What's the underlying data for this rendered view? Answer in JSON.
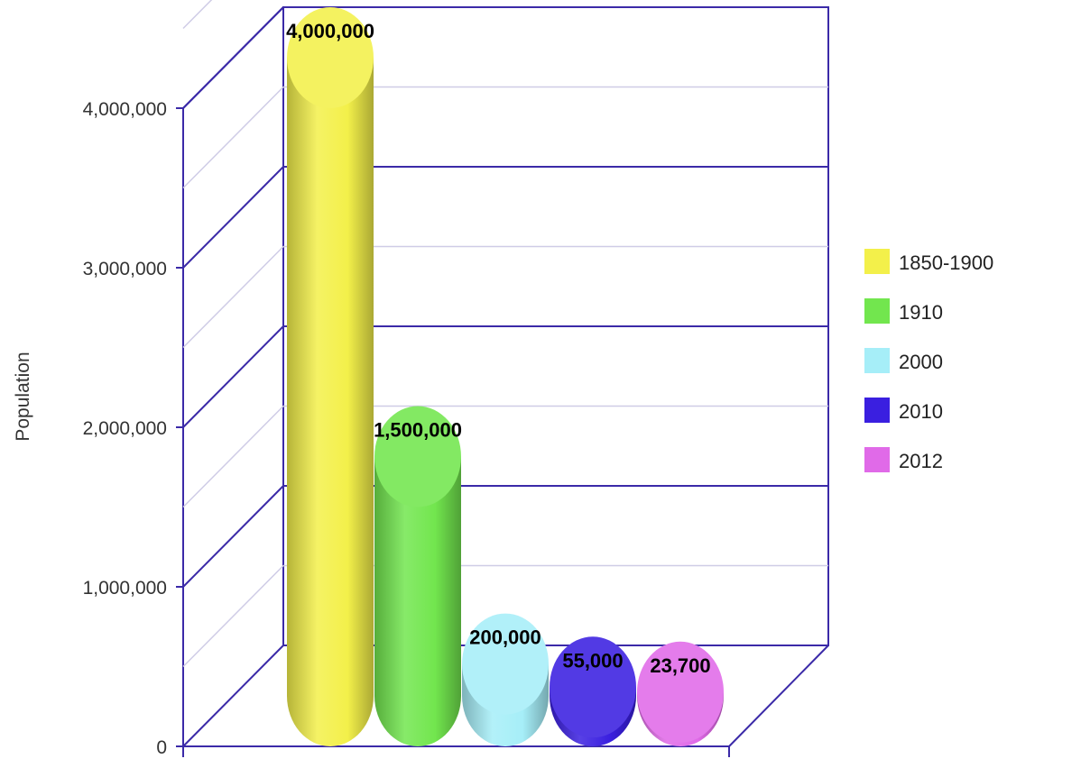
{
  "chart_data": {
    "type": "bar",
    "style": "3d-cylinder",
    "ylabel": "Population",
    "ylim": [
      0,
      4000000
    ],
    "yticks": [
      0,
      1000000,
      2000000,
      3000000,
      4000000
    ],
    "ytick_labels": [
      "0",
      "1,000,000",
      "2,000,000",
      "3,000,000",
      "4,000,000"
    ],
    "categories": [
      "1850-1900",
      "1910",
      "2000",
      "2010",
      "2012"
    ],
    "values": [
      4000000,
      1500000,
      200000,
      55000,
      23700
    ],
    "data_labels": [
      "4,000,000",
      "1,500,000",
      "200,000",
      "55,000",
      "23,700"
    ],
    "colors": [
      "#f3f04a",
      "#72e64e",
      "#a6eef8",
      "#3a1fe0",
      "#e06ae8"
    ],
    "legend": {
      "position": "right",
      "entries": [
        "1850-1900",
        "1910",
        "2000",
        "2010",
        "2012"
      ]
    },
    "grid": true
  }
}
